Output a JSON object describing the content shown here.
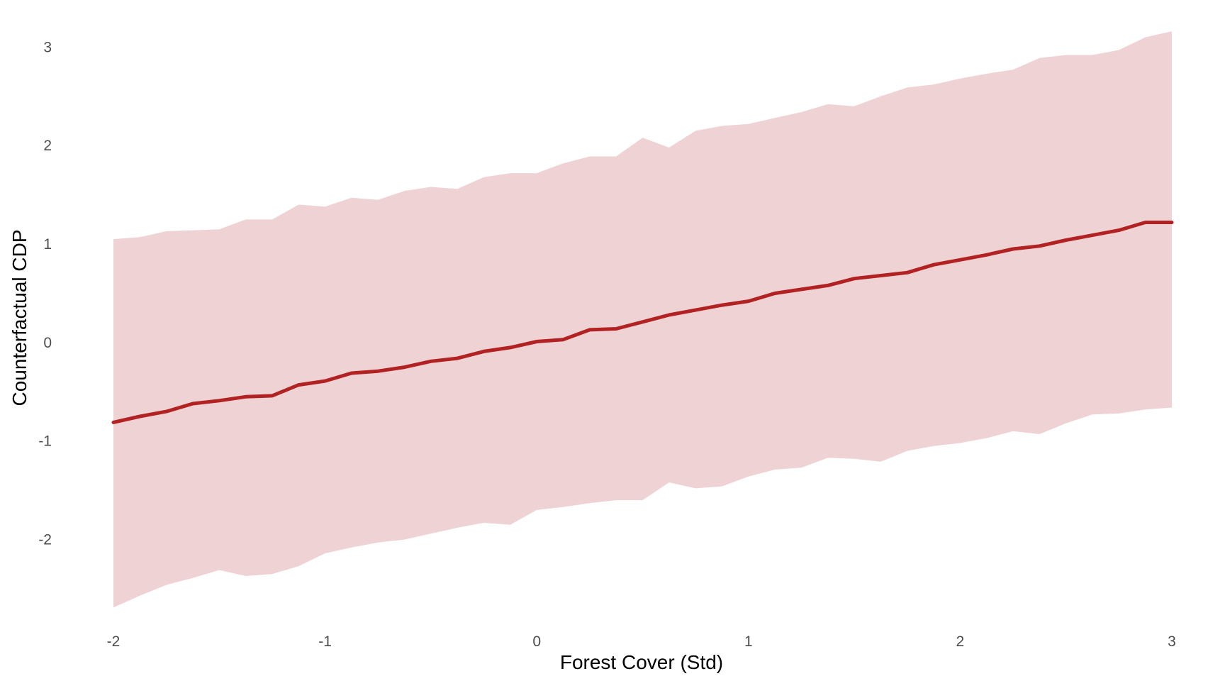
{
  "chart_data": {
    "type": "line",
    "title": "",
    "xlabel": "Forest Cover (Std)",
    "ylabel": "Counterfactual CDP",
    "xlim": [
      -2,
      3
    ],
    "ylim": [
      -2.85,
      3.2
    ],
    "x_ticks": [
      "-2",
      "-1",
      "0",
      "1",
      "2",
      "3"
    ],
    "y_ticks": [
      "-2",
      "-1",
      "0",
      "1",
      "2",
      "3"
    ],
    "grid": false,
    "legend": "none",
    "colors": {
      "line": "#b22222",
      "band": "#efd3d4"
    },
    "series": [
      {
        "x": [
          -2.0,
          -1.875,
          -1.75,
          -1.625,
          -1.5,
          -1.375,
          -1.25,
          -1.125,
          -1.0,
          -0.875,
          -0.75,
          -0.625,
          -0.5,
          -0.375,
          -0.25,
          -0.125,
          0.0,
          0.125,
          0.25,
          0.375,
          0.5,
          0.625,
          0.75,
          0.875,
          1.0,
          1.125,
          1.25,
          1.375,
          1.5,
          1.625,
          1.75,
          1.875,
          2.0,
          2.125,
          2.25,
          2.375,
          2.5,
          2.625,
          2.75,
          2.875,
          3.0
        ],
        "values": [
          -0.8,
          -0.74,
          -0.69,
          -0.61,
          -0.58,
          -0.54,
          -0.53,
          -0.42,
          -0.38,
          -0.3,
          -0.28,
          -0.24,
          -0.18,
          -0.15,
          -0.08,
          -0.04,
          0.02,
          0.04,
          0.14,
          0.15,
          0.22,
          0.29,
          0.34,
          0.39,
          0.43,
          0.51,
          0.55,
          0.59,
          0.66,
          0.69,
          0.72,
          0.8,
          0.85,
          0.9,
          0.96,
          0.99,
          1.05,
          1.1,
          1.15,
          1.23,
          1.23
        ],
        "upper": [
          1.06,
          1.08,
          1.14,
          1.15,
          1.16,
          1.26,
          1.26,
          1.41,
          1.39,
          1.48,
          1.46,
          1.55,
          1.59,
          1.57,
          1.69,
          1.73,
          1.73,
          1.83,
          1.9,
          1.9,
          2.09,
          1.99,
          2.16,
          2.21,
          2.23,
          2.29,
          2.35,
          2.43,
          2.41,
          2.51,
          2.6,
          2.63,
          2.69,
          2.74,
          2.78,
          2.9,
          2.93,
          2.93,
          2.98,
          3.11,
          3.17
        ],
        "lower": [
          -2.68,
          -2.56,
          -2.45,
          -2.38,
          -2.3,
          -2.36,
          -2.34,
          -2.26,
          -2.13,
          -2.07,
          -2.02,
          -1.99,
          -1.93,
          -1.87,
          -1.82,
          -1.84,
          -1.69,
          -1.66,
          -1.62,
          -1.59,
          -1.59,
          -1.41,
          -1.47,
          -1.45,
          -1.35,
          -1.28,
          -1.26,
          -1.16,
          -1.17,
          -1.2,
          -1.09,
          -1.04,
          -1.01,
          -0.96,
          -0.89,
          -0.92,
          -0.81,
          -0.72,
          -0.71,
          -0.67,
          -0.65
        ]
      }
    ]
  }
}
